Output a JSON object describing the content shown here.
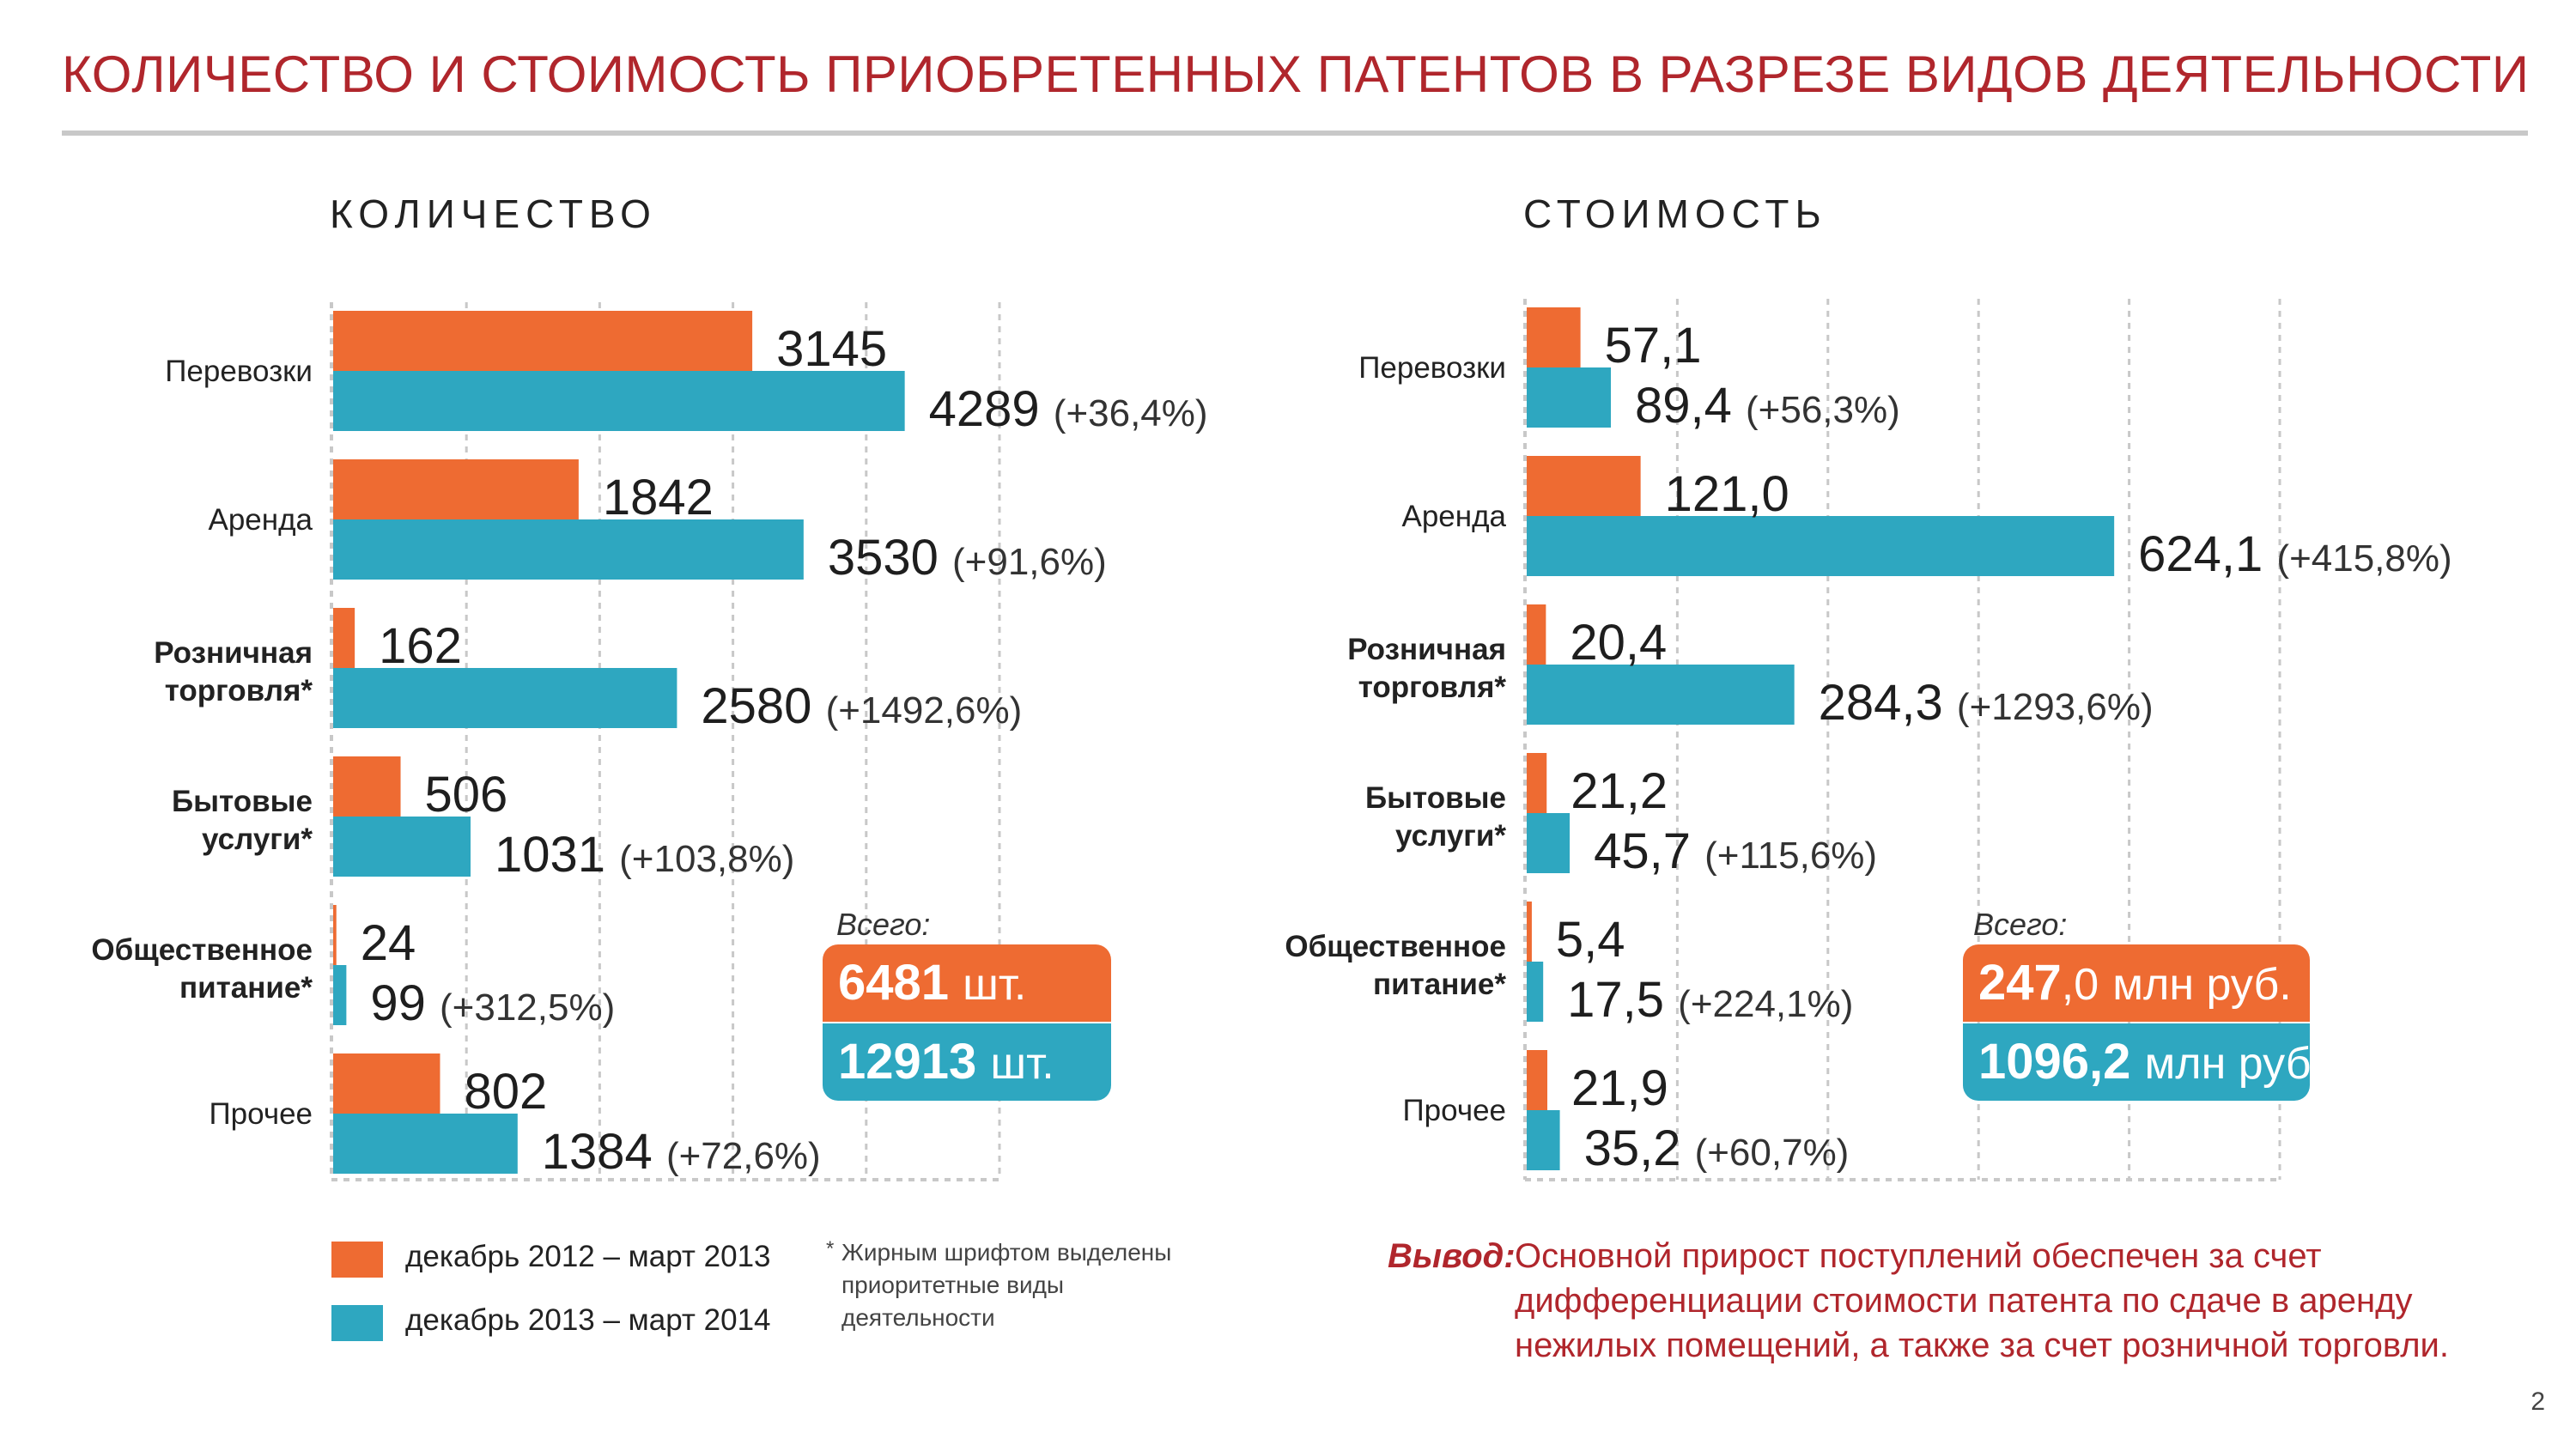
{
  "header": {
    "title": "КОЛИЧЕСТВО И СТОИМОСТЬ ПРИОБРЕТЕННЫХ ПАТЕНТОВ В РАЗРЕЗЕ ВИДОВ ДЕЯТЕЛЬНОСТИ"
  },
  "colors": {
    "title": "#b0262c",
    "series_2013": "#ee6b32",
    "series_2014": "#2ea7c0",
    "grid": "#c8c8c8"
  },
  "chart_data": [
    {
      "type": "bar",
      "orientation": "horizontal",
      "title": "КОЛИЧЕСТВО",
      "categories": [
        "Перевозки",
        "Аренда",
        "Розничная торговля*",
        "Бытовые услуги*",
        "Общественное питание*",
        "Прочее"
      ],
      "priority_categories": [
        "Розничная торговля*",
        "Бытовые услуги*",
        "Общественное питание*"
      ],
      "series": [
        {
          "name": "декабрь 2012 – март 2013",
          "values": [
            3145,
            1842,
            162,
            506,
            24,
            802
          ],
          "labels": [
            "3145",
            "1842",
            "162",
            "506",
            "24",
            "802"
          ]
        },
        {
          "name": "декабрь 2013 – март 2014",
          "values": [
            4289,
            3530,
            2580,
            1031,
            99,
            1384
          ],
          "labels": [
            "4289",
            "3530",
            "2580",
            "1031",
            "99",
            "1384"
          ],
          "changes": [
            "(+36,4%)",
            "(+91,6%)",
            "(+1492,6%)",
            "(+103,8%)",
            "(+312,5%)",
            "(+72,6%)"
          ]
        }
      ],
      "xlim": [
        0,
        5000
      ],
      "grid": true,
      "total": {
        "label": "Всего:",
        "value_2013": "6481",
        "unit_2013": "шт.",
        "value_2014": "12913",
        "unit_2014": "шт."
      }
    },
    {
      "type": "bar",
      "orientation": "horizontal",
      "title": "СТОИМОСТЬ",
      "categories": [
        "Перевозки",
        "Аренда",
        "Розничная торговля*",
        "Бытовые услуги*",
        "Общественное питание*",
        "Прочее"
      ],
      "priority_categories": [
        "Розничная торговля*",
        "Бытовые услуги*",
        "Общественное питание*"
      ],
      "series": [
        {
          "name": "декабрь 2012 – март 2013",
          "values": [
            57.1,
            121.0,
            20.4,
            21.2,
            5.4,
            21.9
          ],
          "labels": [
            "57,1",
            "121,0",
            "20,4",
            "21,2",
            "5,4",
            "21,9"
          ]
        },
        {
          "name": "декабрь 2013 – март 2014",
          "values": [
            89.4,
            624.1,
            284.3,
            45.7,
            17.5,
            35.2
          ],
          "labels": [
            "89,4",
            "624,1",
            "284,3",
            "45,7",
            "17,5",
            "35,2"
          ],
          "changes": [
            "(+56,3%)",
            "(+415,8%)",
            "(+1293,6%)",
            "(+115,6%)",
            "(+224,1%)",
            "(+60,7%)"
          ]
        }
      ],
      "xlim": [
        0,
        800
      ],
      "grid": true,
      "total": {
        "label": "Всего:",
        "value_2013": "247",
        "value_2013_decimal": ",0",
        "unit_2013": "млн руб.",
        "value_2014": "1096,2",
        "unit_2014": "млн руб."
      }
    }
  ],
  "legend": {
    "series_2013": "декабрь 2012 – март 2013",
    "series_2014": "декабрь 2013 – март 2014"
  },
  "footnote": {
    "star": "*",
    "text": "Жирным шрифтом выделены приоритетные виды деятельности"
  },
  "conclusion": {
    "lead": "Вывод:",
    "text": "Основной прирост поступлений обеспечен за счет дифференциации стоимости патента по сдаче в аренду нежилых помещений, а также за счет розничной торговли."
  },
  "page_number": "2"
}
